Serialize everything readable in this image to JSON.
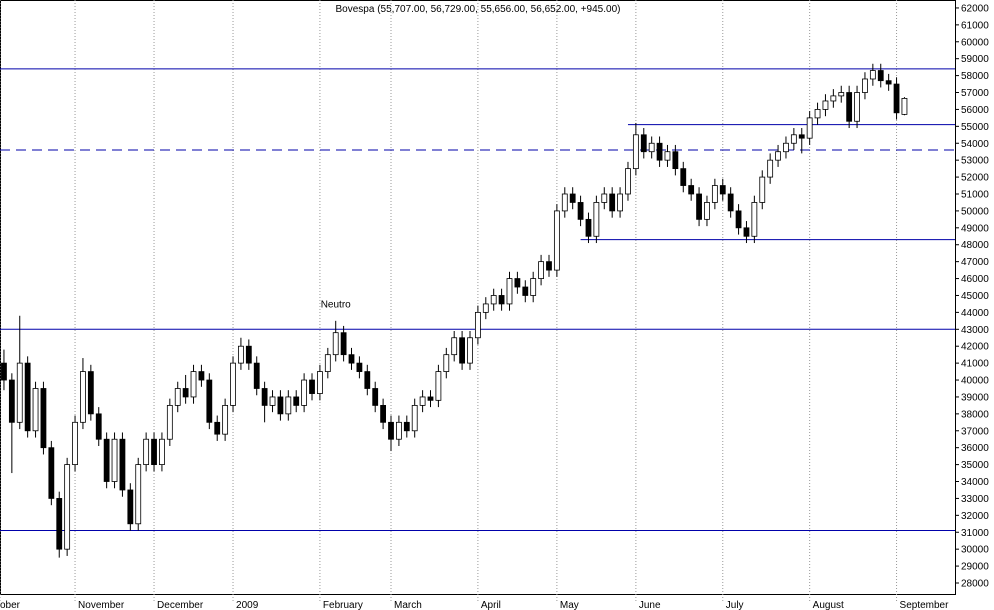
{
  "chart_data": {
    "type": "candlestick",
    "title": "Bovespa (55,707.00, 56,729.00, 55,656.00, 56,652.00, +945.00)",
    "xlim": [
      -0.5,
      120.4
    ],
    "xticks": [
      {
        "value": -0.5,
        "label": "ober"
      },
      {
        "value": 9,
        "label": "November"
      },
      {
        "value": 19,
        "label": "December"
      },
      {
        "value": 29,
        "label": "2009"
      },
      {
        "value": 40,
        "label": "February"
      },
      {
        "value": 49,
        "label": "March"
      },
      {
        "value": 60,
        "label": "April"
      },
      {
        "value": 70,
        "label": "May"
      },
      {
        "value": 80,
        "label": "June"
      },
      {
        "value": 91,
        "label": "July"
      },
      {
        "value": 102,
        "label": "August"
      },
      {
        "value": 113,
        "label": "September"
      }
    ],
    "open": [
      41000,
      40000,
      37500,
      41000,
      37000,
      39500,
      36000,
      33000,
      30000,
      35000,
      37500,
      40500,
      38000,
      36500,
      34000,
      36500,
      33500,
      31500,
      35000,
      36500,
      35000,
      36500,
      38500,
      39500,
      39000,
      40500,
      40000,
      37500,
      36800,
      38500,
      41000,
      42000,
      41000,
      39500,
      38500,
      39000,
      38000,
      39000,
      38500,
      40000,
      39200,
      40500,
      41500,
      42800,
      41500,
      41000,
      40500,
      39500,
      38500,
      37500,
      36500,
      37500,
      37000,
      38500,
      39000,
      38800,
      40500,
      41500,
      42500,
      41000,
      42500,
      44000,
      44500,
      45000,
      44500,
      46000,
      45500,
      45000,
      46000,
      47000,
      46500,
      50000,
      51000,
      50500,
      49500,
      48500,
      50500,
      51000,
      50000,
      51000,
      52500,
      54500,
      53500,
      54000,
      53000,
      53500,
      52500,
      51500,
      51000,
      49500,
      50500,
      51500,
      51000,
      50000,
      49000,
      48500,
      50500,
      52000,
      53000,
      53500,
      54000,
      54500,
      54300,
      55500,
      56000,
      56500,
      56800,
      57000,
      55300,
      57000,
      57800,
      58300,
      57700,
      57500,
      55707
    ],
    "high": [
      41800,
      40400,
      43800,
      41400,
      39900,
      39900,
      36400,
      33400,
      35400,
      37900,
      41300,
      40900,
      38400,
      36900,
      36900,
      36900,
      33900,
      35400,
      36900,
      36900,
      36900,
      38900,
      39900,
      40300,
      40900,
      40900,
      40400,
      37900,
      38900,
      41400,
      42500,
      42400,
      41400,
      39900,
      39400,
      39400,
      39400,
      39400,
      40400,
      40400,
      40900,
      41900,
      43500,
      43200,
      41900,
      41400,
      40900,
      39900,
      38900,
      37900,
      37900,
      37900,
      38900,
      39400,
      39400,
      40900,
      41900,
      42900,
      42900,
      42900,
      44400,
      44900,
      45400,
      45400,
      46400,
      46400,
      45900,
      46400,
      47400,
      47400,
      50400,
      51400,
      51400,
      50900,
      49900,
      50900,
      51400,
      51400,
      51400,
      52900,
      55200,
      54900,
      54400,
      54400,
      53900,
      53900,
      52900,
      51900,
      51400,
      50900,
      51900,
      51900,
      51400,
      50400,
      49400,
      50900,
      52400,
      53400,
      53900,
      54400,
      54900,
      54900,
      55900,
      56400,
      56900,
      57200,
      57400,
      57400,
      57400,
      58200,
      58700,
      58700,
      58100,
      57900,
      56729
    ],
    "low": [
      39400,
      34500,
      37100,
      36600,
      36600,
      35600,
      32600,
      29500,
      29600,
      34600,
      37100,
      37600,
      36100,
      33600,
      33600,
      33100,
      31100,
      31100,
      34600,
      34600,
      34600,
      36100,
      38100,
      38600,
      38600,
      39600,
      37100,
      36400,
      36400,
      38100,
      40600,
      40600,
      39100,
      37500,
      38100,
      37600,
      37600,
      38100,
      38100,
      38800,
      38800,
      40100,
      41100,
      41100,
      40600,
      40100,
      39100,
      38100,
      37100,
      35800,
      36100,
      36600,
      36600,
      38100,
      38400,
      38400,
      40100,
      41100,
      40600,
      40600,
      42100,
      43600,
      44100,
      44100,
      44100,
      45100,
      44600,
      44600,
      45600,
      46100,
      46100,
      49600,
      50100,
      49100,
      48100,
      48100,
      50100,
      49600,
      49600,
      50600,
      52100,
      53100,
      53100,
      52600,
      52600,
      52100,
      51100,
      50600,
      49100,
      49100,
      50100,
      50600,
      49600,
      48600,
      48100,
      48100,
      50100,
      51600,
      52600,
      53100,
      53600,
      53400,
      53900,
      55100,
      55600,
      56100,
      56400,
      54900,
      54900,
      56600,
      57400,
      57300,
      57100,
      55400,
      55656
    ],
    "close": [
      40000,
      37500,
      41000,
      37000,
      39500,
      36000,
      33000,
      30000,
      35000,
      37500,
      40500,
      38000,
      36500,
      34000,
      36500,
      33500,
      31500,
      35000,
      36500,
      35000,
      36500,
      38500,
      39500,
      39000,
      40500,
      40000,
      37500,
      36800,
      38500,
      41000,
      42000,
      41000,
      39500,
      38500,
      39000,
      38000,
      39000,
      38500,
      40000,
      39200,
      40500,
      41500,
      42800,
      41500,
      41000,
      40500,
      39500,
      38500,
      37500,
      36500,
      37500,
      37000,
      38500,
      39000,
      38800,
      40500,
      41500,
      42500,
      41000,
      42500,
      44000,
      44500,
      45000,
      44500,
      46000,
      45500,
      45000,
      46000,
      47000,
      46500,
      50000,
      51000,
      50500,
      49500,
      48500,
      50500,
      51000,
      50000,
      51000,
      52500,
      54500,
      53500,
      54000,
      53000,
      53500,
      52500,
      51500,
      51000,
      49500,
      50500,
      51500,
      51000,
      50000,
      49000,
      48500,
      50500,
      52000,
      53000,
      53500,
      54000,
      54500,
      54300,
      55500,
      56000,
      56500,
      56800,
      57000,
      55300,
      57000,
      57800,
      58300,
      57700,
      57500,
      55800,
      56652
    ],
    "up_color": "#ffffff",
    "down_color": "#000000",
    "ylim": [
      27290,
      62470
    ],
    "yticks": [
      28000,
      29000,
      30000,
      31000,
      32000,
      33000,
      34000,
      35000,
      36000,
      37000,
      38000,
      39000,
      40000,
      41000,
      42000,
      43000,
      44000,
      45000,
      46000,
      47000,
      48000,
      49000,
      50000,
      51000,
      52000,
      53000,
      54000,
      55000,
      56000,
      57000,
      58000,
      59000,
      60000,
      61000,
      62000
    ],
    "lines": [
      {
        "value": 58400,
        "start": -0.5,
        "style": "solid",
        "color": "#0000aa"
      },
      {
        "value": 55100,
        "start": 79,
        "style": "solid",
        "color": "#0000aa"
      },
      {
        "value": 53600,
        "start": -0.5,
        "style": "dashed",
        "color": "#0000aa"
      },
      {
        "value": 48300,
        "start": 73,
        "style": "solid",
        "color": "#0000aa"
      },
      {
        "value": 43000,
        "start": -0.5,
        "style": "solid",
        "color": "#0000aa"
      },
      {
        "value": 31100,
        "start": -0.5,
        "style": "solid",
        "color": "#0000aa"
      }
    ],
    "annotations": [
      {
        "text": "Neutro",
        "x": 42,
        "y": 44300,
        "color": "#0000aa"
      }
    ]
  }
}
